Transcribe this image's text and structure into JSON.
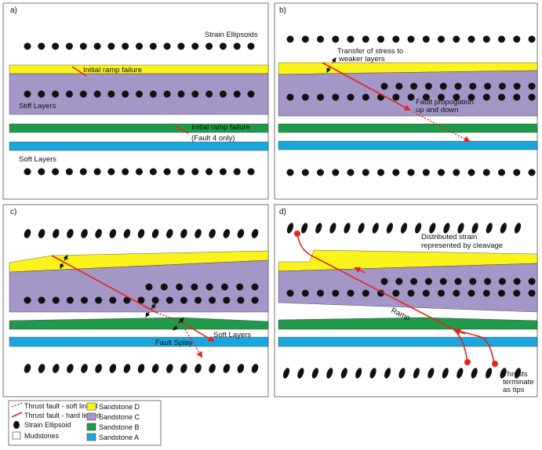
{
  "colors": {
    "sandstone_d": "#fbf31c",
    "sandstone_c": "#a596c8",
    "sandstone_b": "#1f9a4a",
    "sandstone_a": "#1ba6dc",
    "fault": "#e2251c",
    "ellipsoid": "#111111"
  },
  "panels": {
    "a": {
      "label": "a)",
      "strain_ellipsoids": "Strain Ellipsoids",
      "initial_ramp_failure_1": "Initial ramp failure",
      "stiff_layers": "Stiff Layers",
      "initial_ramp_failure_2": "Initial ramp failure",
      "fault_4_only": "(Fault 4 only)",
      "soft_layers": "Soft Layers"
    },
    "b": {
      "label": "b)",
      "transfer_line1": "Transfer of stress to",
      "transfer_line2": "weaker layers",
      "fault_prop_line1": "Fault propogation",
      "fault_prop_line2": "up and down"
    },
    "c": {
      "label": "c)",
      "soft_layers": "Soft Layers",
      "fault_splay": "Fault Splay"
    },
    "d": {
      "label": "d)",
      "distributed_line1": "Distributed strain",
      "distributed_line2": "represented by cleavage",
      "ramp": "Ramp",
      "thrusts_line1": "Thrusts",
      "thrusts_line2": "terminate",
      "thrusts_line3": "as tips"
    }
  },
  "legend": {
    "soft_linked": "Thrust fault - soft linked",
    "hard_linked": "Thrust fault - hard linked",
    "ellipsoid": "Strain Ellipsoid",
    "mudstones": "Mudstones",
    "sandstone_d": "Sandstone D",
    "sandstone_c": "Sandstone C",
    "sandstone_b": "Sandstone B",
    "sandstone_a": "Sandstone A"
  }
}
